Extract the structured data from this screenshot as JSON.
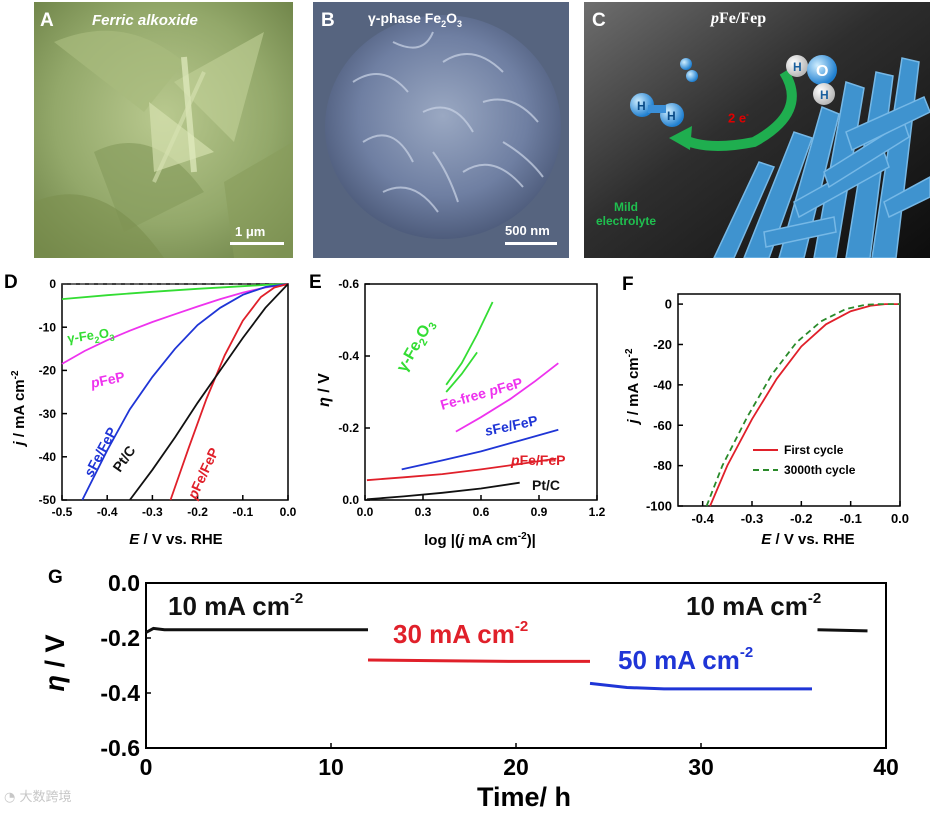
{
  "panels": {
    "a": {
      "label": "A",
      "title": "Ferric alkoxide",
      "scale": "1 μm"
    },
    "b": {
      "label": "B",
      "title_main": "γ-phase Fe",
      "title_sub1": "2",
      "title_mid": "O",
      "title_sub2": "3",
      "scale": "500 nm"
    },
    "c": {
      "label": "C",
      "title_italic": "p",
      "title_rest": "Fe/Fep",
      "electrons": "2 e",
      "electrolyte_line1": "Mild",
      "electrolyte_line2": "electrolyte",
      "atom_h": "H",
      "atom_o": "O"
    },
    "d": {
      "label": "D"
    },
    "e": {
      "label": "E"
    },
    "f": {
      "label": "F"
    },
    "g": {
      "label": "G"
    }
  },
  "watermark": "大数跨境",
  "chart_data": [
    {
      "id": "D",
      "type": "line",
      "xlabel_italic": "E",
      "xlabel_rest": " / V vs. RHE",
      "ylabel_italic": "j",
      "ylabel_rest": " / mA cm",
      "ylabel_sup": "-2",
      "xlim": [
        -0.5,
        0.0
      ],
      "ylim": [
        -50,
        0
      ],
      "xticks": [
        "-0.5",
        "-0.4",
        "-0.3",
        "-0.2",
        "-0.1",
        "0.0"
      ],
      "xtick_values": [
        -0.5,
        -0.4,
        -0.3,
        -0.2,
        -0.1,
        0.0
      ],
      "yticks": [
        "0",
        "-10",
        "-20",
        "-30",
        "-40",
        "-50"
      ],
      "ytick_values": [
        0,
        -10,
        -20,
        -30,
        -40,
        -50
      ],
      "series": [
        {
          "name": "γ-Fe2O3",
          "color": "#33dd33",
          "x": [
            -0.5,
            -0.4,
            -0.3,
            -0.2,
            -0.1,
            -0.05,
            0.0
          ],
          "y": [
            -3.5,
            -2.6,
            -1.8,
            -1.1,
            -0.5,
            -0.2,
            0
          ]
        },
        {
          "name": "pFeP",
          "color": "#ee33ee",
          "x": [
            -0.5,
            -0.45,
            -0.4,
            -0.35,
            -0.3,
            -0.25,
            -0.2,
            -0.15,
            -0.1,
            -0.05,
            0.0
          ],
          "y": [
            -18.5,
            -15.5,
            -13,
            -10.8,
            -8.8,
            -7,
            -5.2,
            -3.5,
            -2,
            -0.8,
            0
          ]
        },
        {
          "name": "sFe/FeP",
          "color": "#1f35d6",
          "x": [
            -0.455,
            -0.4,
            -0.35,
            -0.3,
            -0.25,
            -0.2,
            -0.15,
            -0.1,
            -0.05,
            0.0
          ],
          "y": [
            -50,
            -38.5,
            -29,
            -21.5,
            -15,
            -9.5,
            -5.5,
            -2.5,
            -0.7,
            0
          ]
        },
        {
          "name": "pFe/FeP",
          "color": "#e0202a",
          "x": [
            -0.26,
            -0.22,
            -0.18,
            -0.14,
            -0.1,
            -0.06,
            -0.03,
            0.0
          ],
          "y": [
            -50,
            -38,
            -26.5,
            -16.5,
            -8.5,
            -3,
            -0.8,
            0
          ]
        },
        {
          "name": "Pt/C",
          "color": "#111111",
          "x": [
            -0.35,
            -0.3,
            -0.25,
            -0.2,
            -0.15,
            -0.1,
            -0.05,
            0.0
          ],
          "y": [
            -50,
            -43,
            -35.5,
            -27.5,
            -20,
            -12.5,
            -5.5,
            0
          ]
        }
      ],
      "series_labels": {
        "gfe_a": "γ-Fe",
        "gfe_sub1": "2",
        "gfe_b": "O",
        "gfe_sub2": "3",
        "pfep_i": "p",
        "pfep_r": "FeP",
        "sfe_i": "s",
        "sfe_r": "Fe/FeP",
        "pt": "Pt/C",
        "pfe_i": "p",
        "pfe_r": "Fe/FeP"
      }
    },
    {
      "id": "E",
      "type": "line",
      "xlabel": "log |(j mA cm",
      "xlabel_a": "log |(",
      "xlabel_j": "j",
      "xlabel_b": " mA cm",
      "xlabel_sup": "-2",
      "xlabel_c": ")|",
      "ylabel_italic": "η",
      "ylabel_rest": " / V",
      "xlim": [
        0.0,
        1.2
      ],
      "ylim": [
        0.0,
        -0.6
      ],
      "xticks": [
        "0.0",
        "0.3",
        "0.6",
        "0.9",
        "1.2"
      ],
      "xtick_values": [
        0.0,
        0.3,
        0.6,
        0.9,
        1.2
      ],
      "yticks": [
        "-0.6",
        "-0.4",
        "-0.2",
        "0.0"
      ],
      "ytick_values": [
        -0.6,
        -0.4,
        -0.2,
        0.0
      ],
      "series": [
        {
          "name": "γ-Fe2O3",
          "color": "#33dd33",
          "x": [
            0.42,
            0.5,
            0.58,
            0.66
          ],
          "y": [
            -0.32,
            -0.38,
            -0.46,
            -0.55
          ]
        },
        {
          "name": "γ-Fe2O3 b",
          "color": "#33dd33",
          "x": [
            0.42,
            0.5,
            0.58
          ],
          "y": [
            -0.3,
            -0.35,
            -0.41
          ]
        },
        {
          "name": "Fe-free pFeP",
          "color": "#ee33ee",
          "x": [
            0.47,
            0.6,
            0.75,
            0.88,
            1.0
          ],
          "y": [
            -0.19,
            -0.23,
            -0.28,
            -0.33,
            -0.38
          ]
        },
        {
          "name": "sFe/FeP",
          "color": "#1f35d6",
          "x": [
            0.19,
            0.4,
            0.6,
            0.8,
            1.0
          ],
          "y": [
            -0.085,
            -0.11,
            -0.135,
            -0.165,
            -0.195
          ]
        },
        {
          "name": "pFe/FeP",
          "color": "#e0202a",
          "x": [
            0.01,
            0.2,
            0.4,
            0.6,
            0.8,
            0.99
          ],
          "y": [
            -0.055,
            -0.063,
            -0.072,
            -0.085,
            -0.1,
            -0.115
          ]
        },
        {
          "name": "Pt/C",
          "color": "#111111",
          "x": [
            0.01,
            0.2,
            0.4,
            0.6,
            0.8
          ],
          "y": [
            -0.002,
            -0.01,
            -0.02,
            -0.032,
            -0.048
          ]
        }
      ],
      "series_labels": {
        "gfe_a": "γ-Fe",
        "gfe_sub1": "2",
        "gfe_b": "O",
        "gfe_sub2": "3",
        "fefree_a": "Fe-free ",
        "fefree_i": "p",
        "fefree_b": "FeP",
        "sfe_i": "s",
        "sfe_r": "Fe/FeP",
        "pfe_i": "p",
        "pfe_r": "Fe/FeP",
        "pt": "Pt/C"
      }
    },
    {
      "id": "F",
      "type": "line",
      "xlabel_italic": "E",
      "xlabel_rest": " / V vs. RHE",
      "ylabel_italic": "j",
      "ylabel_rest": " / mA cm",
      "ylabel_sup": "-2",
      "xlim": [
        -0.45,
        0.0
      ],
      "ylim": [
        -100,
        5
      ],
      "xticks": [
        "-0.4",
        "-0.3",
        "-0.2",
        "-0.1",
        "0.0"
      ],
      "xtick_values": [
        -0.4,
        -0.3,
        -0.2,
        -0.1,
        0.0
      ],
      "yticks": [
        "0",
        "-20",
        "-40",
        "-60",
        "-80",
        "-100"
      ],
      "ytick_values": [
        0,
        -20,
        -40,
        -60,
        -80,
        -100
      ],
      "series": [
        {
          "name": "First cycle",
          "color": "#e0202a",
          "dash": false,
          "x": [
            -0.385,
            -0.35,
            -0.3,
            -0.25,
            -0.2,
            -0.15,
            -0.1,
            -0.06,
            -0.03,
            0.0
          ],
          "y": [
            -100,
            -80,
            -57,
            -37,
            -21,
            -10,
            -3.5,
            -0.8,
            0,
            0
          ]
        },
        {
          "name": "3000th cycle",
          "color": "#2a8a2a",
          "dash": true,
          "x": [
            -0.392,
            -0.36,
            -0.31,
            -0.26,
            -0.21,
            -0.16,
            -0.11,
            -0.07,
            -0.04,
            0.0
          ],
          "y": [
            -100,
            -80,
            -56,
            -35,
            -19,
            -8.5,
            -2.5,
            -0.3,
            0,
            0
          ]
        }
      ],
      "legend": [
        "First cycle",
        "3000th cycle"
      ],
      "legend_position": "lower-right"
    },
    {
      "id": "G",
      "type": "line",
      "xlabel": "Time/ h",
      "ylabel_italic": "η",
      "ylabel_rest": " / V",
      "xlim": [
        0,
        40
      ],
      "ylim": [
        -0.6,
        0.0
      ],
      "xticks": [
        "0",
        "10",
        "20",
        "30",
        "40"
      ],
      "xtick_values": [
        0,
        10,
        20,
        30,
        40
      ],
      "yticks": [
        "0.0",
        "-0.2",
        "-0.4",
        "-0.6"
      ],
      "ytick_values": [
        0.0,
        -0.2,
        -0.4,
        -0.6
      ],
      "series": [
        {
          "name": "10 mA cm-2 first",
          "color": "#111111",
          "x": [
            0,
            0.4,
            1,
            4,
            8,
            12
          ],
          "y": [
            -0.18,
            -0.165,
            -0.17,
            -0.17,
            -0.17,
            -0.17
          ]
        },
        {
          "name": "30 mA cm-2",
          "color": "#e0202a",
          "x": [
            12,
            16,
            20,
            24
          ],
          "y": [
            -0.28,
            -0.283,
            -0.285,
            -0.285
          ]
        },
        {
          "name": "50 mA cm-2",
          "color": "#1f35d6",
          "x": [
            24,
            26,
            28,
            31,
            34,
            36
          ],
          "y": [
            -0.365,
            -0.38,
            -0.385,
            -0.385,
            -0.385,
            -0.385
          ]
        },
        {
          "name": "10 mA cm-2 last",
          "color": "#111111",
          "x": [
            36.3,
            37.5,
            39
          ],
          "y": [
            -0.17,
            -0.172,
            -0.174
          ]
        }
      ],
      "annotations": {
        "a1": "10 mA cm",
        "a1_sup": "-2",
        "a2": "30 mA cm",
        "a2_sup": "-2",
        "a3": "50 mA cm",
        "a3_sup": "-2",
        "a4": "10 mA cm",
        "a4_sup": "-2"
      }
    }
  ]
}
